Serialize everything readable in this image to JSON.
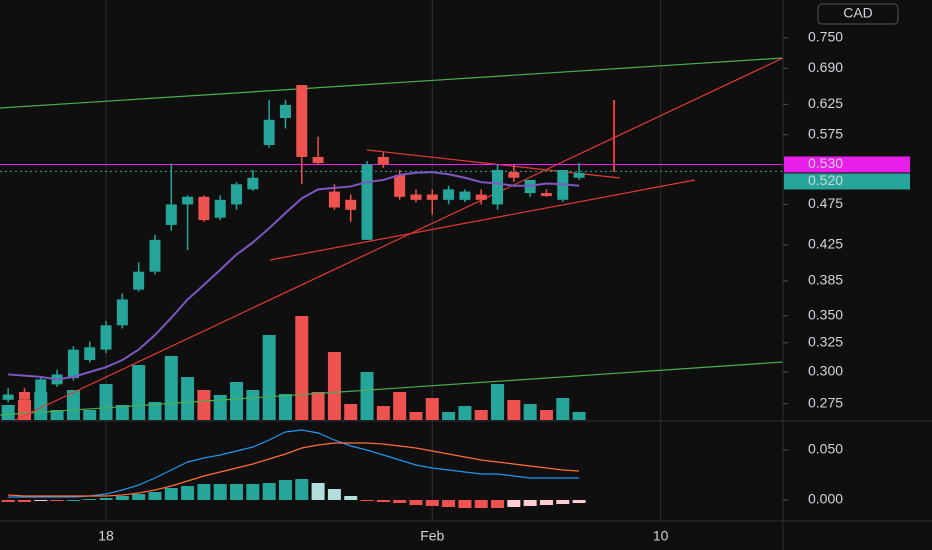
{
  "chart_data": {
    "type": "candlestick",
    "currency": "CAD",
    "log": true,
    "colors": {
      "up": "#26a69a",
      "down": "#ef5350",
      "ma": "#7e57c2",
      "macd": "#2196f3",
      "signal": "#ff6d3b"
    },
    "xlim": [
      -0.5,
      47.5
    ],
    "xticks": [
      {
        "value": 6,
        "label": "18"
      },
      {
        "value": 26,
        "label": "Feb"
      },
      {
        "value": 40,
        "label": "10"
      }
    ],
    "ylim": [
      0.263,
      0.832
    ],
    "yticks": [
      {
        "value": 0.75,
        "label": "0.750"
      },
      {
        "value": 0.69,
        "label": "0.690"
      },
      {
        "value": 0.625,
        "label": "0.625"
      },
      {
        "value": 0.575,
        "label": "0.575"
      },
      {
        "value": 0.475,
        "label": "0.475"
      },
      {
        "value": 0.425,
        "label": "0.425"
      },
      {
        "value": 0.385,
        "label": "0.385"
      },
      {
        "value": 0.35,
        "label": "0.350"
      },
      {
        "value": 0.325,
        "label": "0.325"
      },
      {
        "value": 0.3,
        "label": "0.300"
      },
      {
        "value": 0.275,
        "label": "0.275"
      }
    ],
    "price_labels": [
      {
        "value": 0.53,
        "label": "0.530",
        "color": "#e91ee9"
      },
      {
        "value": 0.52,
        "label": "0.520",
        "color": "#26a69a"
      }
    ],
    "candles": [
      [
        0.278,
        0.287,
        0.276,
        0.282
      ],
      [
        0.284,
        0.287,
        0.276,
        0.278
      ],
      [
        0.282,
        0.296,
        0.279,
        0.294
      ],
      [
        0.29,
        0.302,
        0.288,
        0.298
      ],
      [
        0.295,
        0.322,
        0.293,
        0.319
      ],
      [
        0.31,
        0.326,
        0.308,
        0.321
      ],
      [
        0.319,
        0.345,
        0.316,
        0.341
      ],
      [
        0.341,
        0.372,
        0.338,
        0.366
      ],
      [
        0.376,
        0.405,
        0.374,
        0.395
      ],
      [
        0.395,
        0.437,
        0.392,
        0.431
      ],
      [
        0.449,
        0.531,
        0.442,
        0.475
      ],
      [
        0.475,
        0.487,
        0.419,
        0.485
      ],
      [
        0.485,
        0.487,
        0.453,
        0.455
      ],
      [
        0.458,
        0.487,
        0.455,
        0.481
      ],
      [
        0.475,
        0.505,
        0.468,
        0.502
      ],
      [
        0.495,
        0.522,
        0.493,
        0.511
      ],
      [
        0.559,
        0.633,
        0.555,
        0.599
      ],
      [
        0.602,
        0.633,
        0.585,
        0.624
      ],
      [
        0.659,
        0.659,
        0.502,
        0.541
      ],
      [
        0.541,
        0.572,
        0.53,
        0.532
      ],
      [
        0.492,
        0.502,
        0.468,
        0.471
      ],
      [
        0.481,
        0.488,
        0.453,
        0.468
      ],
      [
        0.431,
        0.535,
        0.431,
        0.53
      ],
      [
        0.541,
        0.548,
        0.525,
        0.53
      ],
      [
        0.515,
        0.522,
        0.481,
        0.485
      ],
      [
        0.488,
        0.495,
        0.478,
        0.481
      ],
      [
        0.488,
        0.495,
        0.462,
        0.481
      ],
      [
        0.481,
        0.5,
        0.475,
        0.495
      ],
      [
        0.481,
        0.495,
        0.478,
        0.492
      ],
      [
        0.488,
        0.495,
        0.475,
        0.481
      ],
      [
        0.475,
        0.53,
        0.468,
        0.522
      ],
      [
        0.519,
        0.53,
        0.505,
        0.511
      ],
      [
        0.49,
        0.505,
        0.485,
        0.508
      ],
      [
        0.49,
        0.495,
        0.485,
        0.486
      ],
      [
        0.481,
        0.522,
        0.478,
        0.522
      ],
      [
        0.511,
        0.532,
        0.508,
        0.518
      ]
    ],
    "volume": [
      15,
      20,
      28,
      10,
      30,
      10,
      36,
      15,
      55,
      18,
      64,
      43,
      30,
      25,
      38,
      30,
      85,
      26,
      104,
      28,
      68,
      16,
      48,
      14,
      28,
      8,
      22,
      8,
      14,
      10,
      36,
      20,
      16,
      10,
      22,
      8
    ],
    "ma": [
      0.298,
      0.297,
      0.296,
      0.294,
      0.296,
      0.3,
      0.304,
      0.31,
      0.319,
      0.332,
      0.348,
      0.366,
      0.381,
      0.397,
      0.414,
      0.428,
      0.445,
      0.464,
      0.483,
      0.495,
      0.497,
      0.499,
      0.505,
      0.508,
      0.515,
      0.518,
      0.519,
      0.516,
      0.511,
      0.505,
      0.503,
      0.5,
      0.5,
      0.503,
      0.502,
      0.5
    ],
    "macd": {
      "ylim": [
        -0.02,
        0.078
      ],
      "yticks": [
        {
          "value": 0.05,
          "label": "0.050"
        },
        {
          "value": 0,
          "label": "0.000"
        }
      ],
      "macd": [
        0.003,
        0.003,
        0.003,
        0.003,
        0.003,
        0.004,
        0.006,
        0.01,
        0.015,
        0.022,
        0.03,
        0.038,
        0.042,
        0.045,
        0.049,
        0.053,
        0.06,
        0.068,
        0.07,
        0.067,
        0.06,
        0.054,
        0.05,
        0.045,
        0.04,
        0.035,
        0.032,
        0.03,
        0.028,
        0.026,
        0.026,
        0.024,
        0.022,
        0.022,
        0.022,
        0.022
      ],
      "signal": [
        0.005,
        0.004,
        0.004,
        0.004,
        0.004,
        0.004,
        0.004,
        0.005,
        0.007,
        0.01,
        0.014,
        0.019,
        0.024,
        0.028,
        0.032,
        0.036,
        0.041,
        0.046,
        0.052,
        0.055,
        0.057,
        0.057,
        0.057,
        0.056,
        0.054,
        0.052,
        0.049,
        0.046,
        0.043,
        0.04,
        0.038,
        0.036,
        0.034,
        0.032,
        0.03,
        0.029
      ],
      "histogram": [
        -0.002,
        -0.002,
        -0.001,
        -0.001,
        0,
        0.001,
        0.002,
        0.004,
        0.006,
        0.008,
        0.012,
        0.014,
        0.016,
        0.016,
        0.016,
        0.016,
        0.017,
        0.02,
        0.021,
        0.017,
        0.011,
        0.004,
        -0.001,
        -0.002,
        -0.003,
        -0.005,
        -0.006,
        -0.007,
        -0.008,
        -0.008,
        -0.008,
        -0.007,
        -0.006,
        -0.005,
        -0.004,
        -0.003
      ]
    }
  }
}
